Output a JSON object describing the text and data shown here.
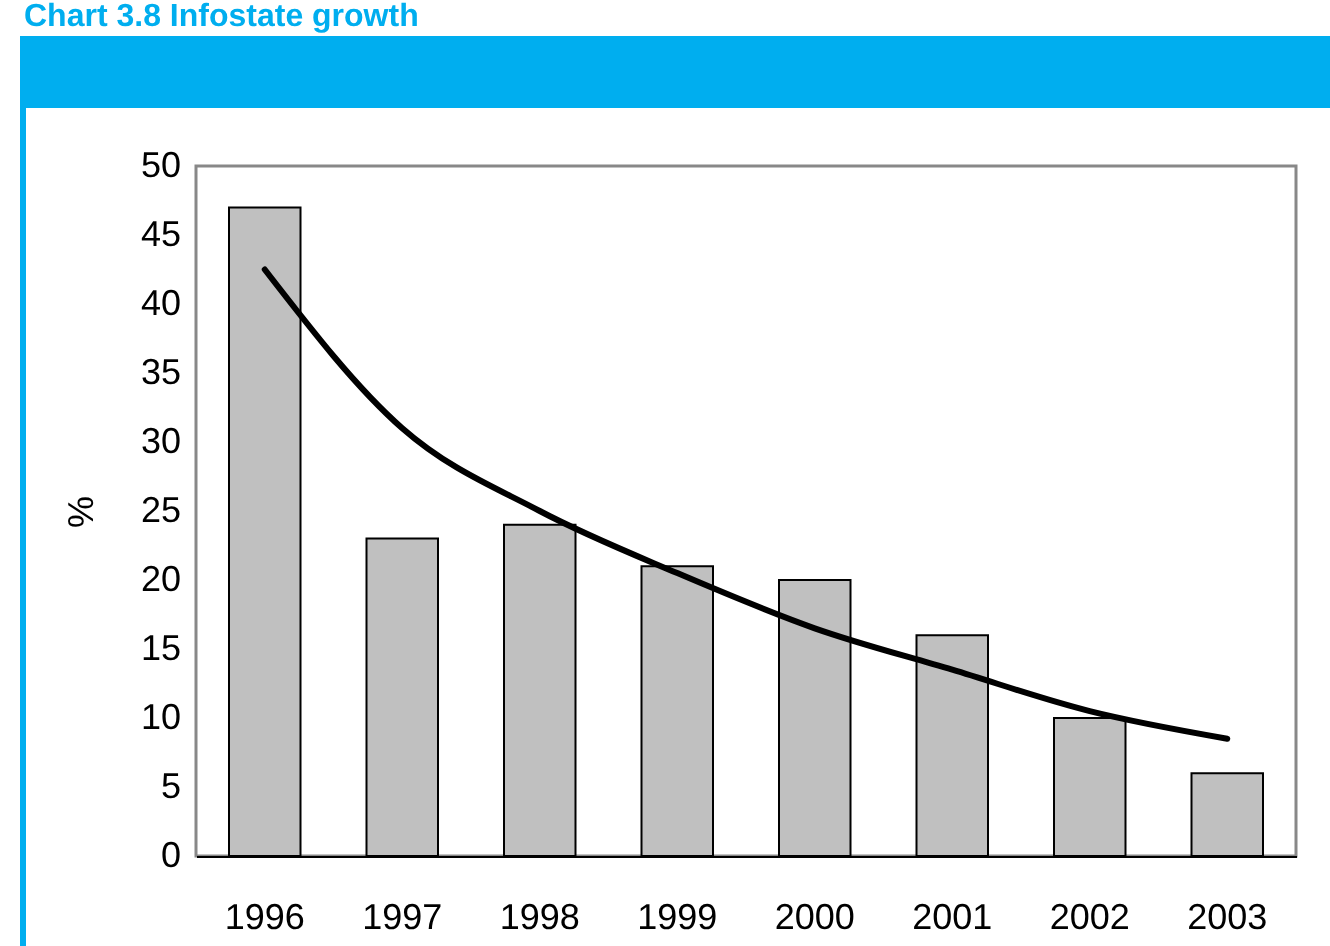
{
  "chart_data": {
    "type": "bar",
    "title": "Chart 3.8 Infostate growth",
    "ylabel": "%",
    "categories": [
      "1996",
      "1997",
      "1998",
      "1999",
      "2000",
      "2001",
      "2002",
      "2003"
    ],
    "series": [
      {
        "color": "#c0c0c0",
        "values": [
          47,
          23,
          24,
          21,
          20,
          16,
          10,
          6
        ]
      },
      {
        "type": "line",
        "color": "#000000",
        "values": [
          42.5,
          31,
          25,
          20.5,
          16.5,
          13.5,
          10.5,
          8.5
        ]
      }
    ],
    "ylim": [
      0,
      50
    ],
    "yticks": [
      0,
      5,
      10,
      15,
      20,
      25,
      30,
      35,
      40,
      45,
      50
    ],
    "grid": false
  }
}
